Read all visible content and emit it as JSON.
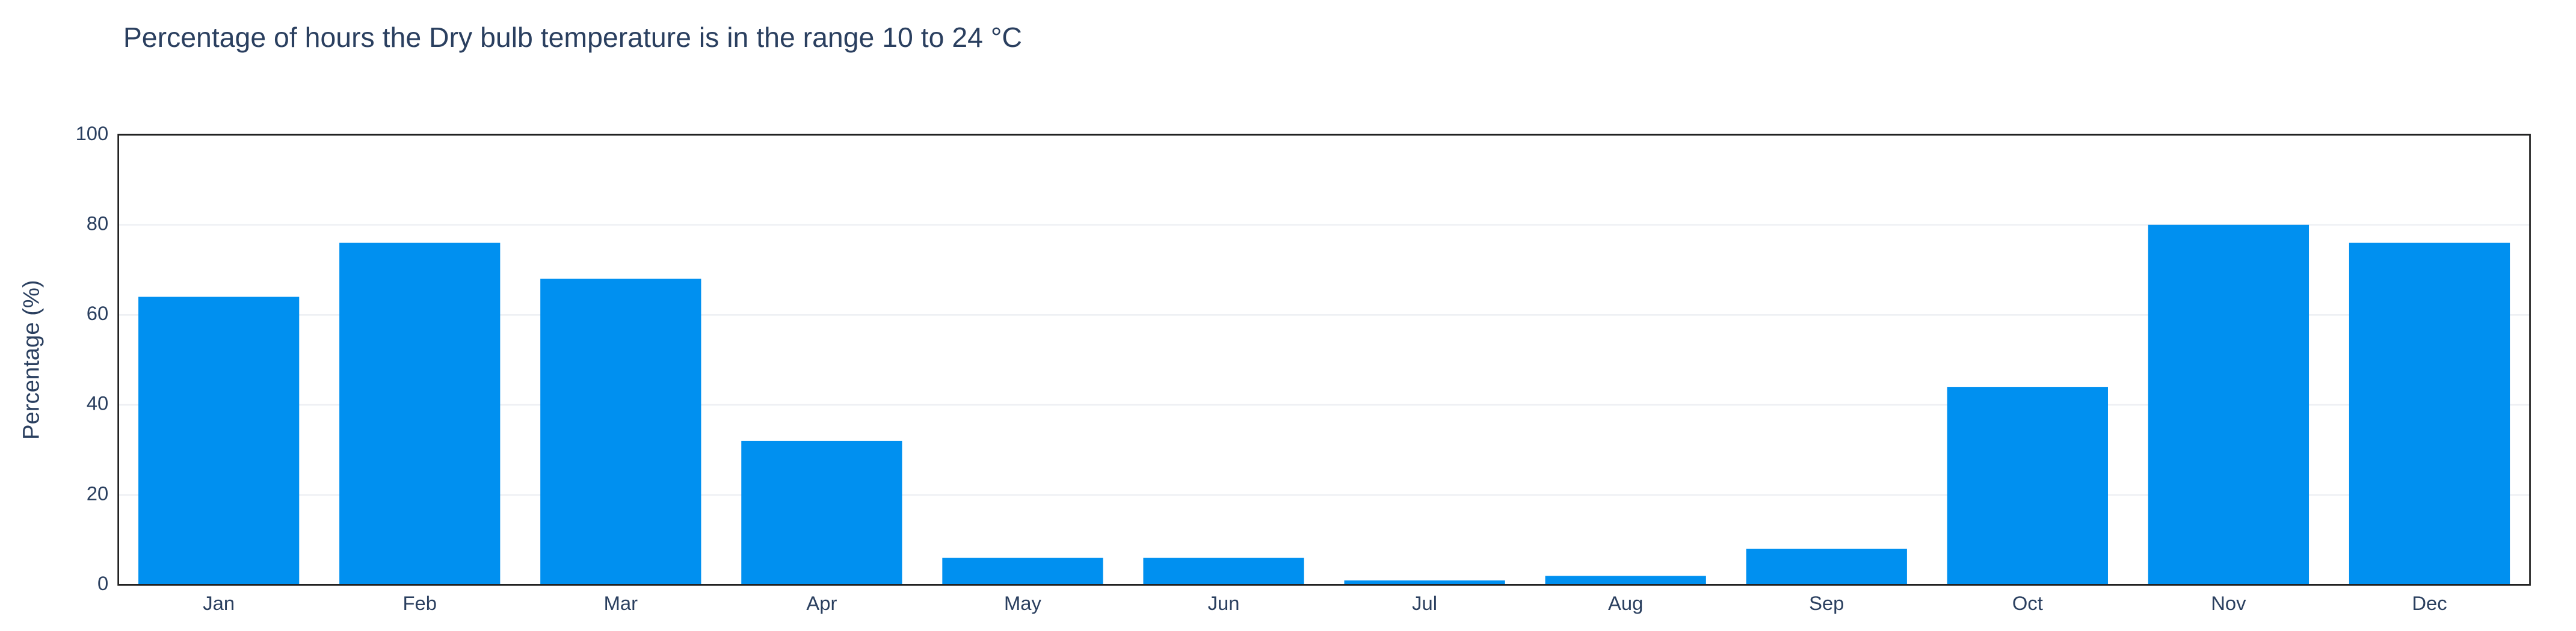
{
  "chart_data": {
    "type": "bar",
    "title": "Percentage of hours the Dry bulb temperature is in the range 10 to 24 °C",
    "y_label": "Percentage (%)",
    "categories": [
      "Jan",
      "Feb",
      "Mar",
      "Apr",
      "May",
      "Jun",
      "Jul",
      "Aug",
      "Sep",
      "Oct",
      "Nov",
      "Dec"
    ],
    "values": [
      64,
      76,
      68,
      32,
      6,
      6,
      1,
      2,
      8,
      44,
      80,
      76
    ],
    "color": "#0090f0",
    "ylim": [
      0,
      100
    ],
    "yticks": [
      0,
      20,
      40,
      60,
      80,
      100
    ],
    "grid": true
  }
}
